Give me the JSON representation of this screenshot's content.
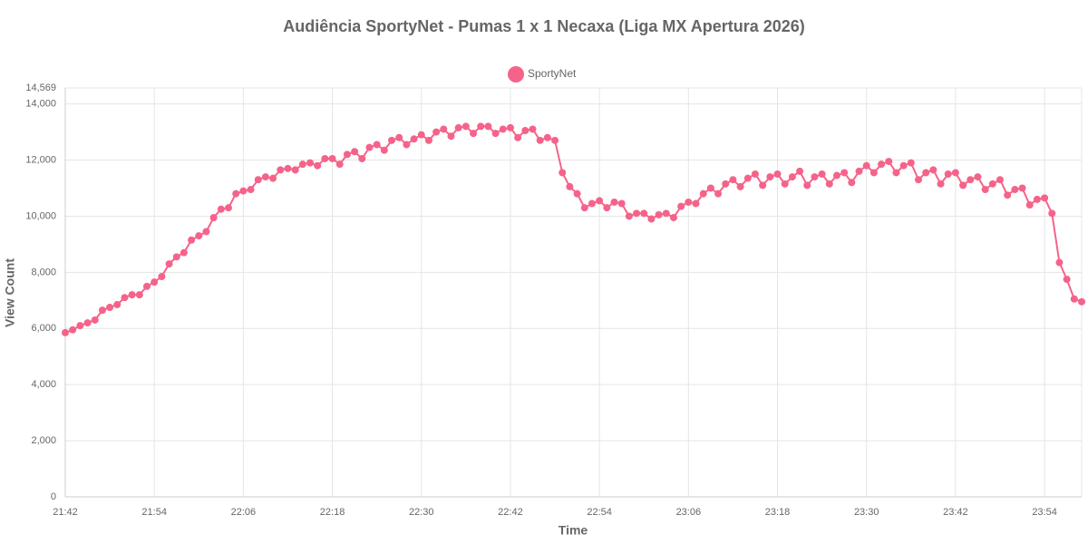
{
  "chart_data": {
    "type": "line",
    "title": "Audiência SportyNet - Pumas 1 x 1 Necaxa (Liga MX Apertura 2026)",
    "x_label": "Time",
    "y_label": "View Count",
    "categories": [
      "21:42",
      null,
      null,
      null,
      null,
      null,
      null,
      null,
      null,
      null,
      null,
      null,
      "21:54",
      null,
      null,
      null,
      null,
      null,
      null,
      null,
      null,
      null,
      null,
      null,
      "22:06",
      null,
      null,
      null,
      null,
      null,
      null,
      null,
      null,
      null,
      null,
      null,
      "22:18",
      null,
      null,
      null,
      null,
      null,
      null,
      null,
      null,
      null,
      null,
      null,
      "22:30",
      null,
      null,
      null,
      null,
      null,
      null,
      null,
      null,
      null,
      null,
      null,
      "22:42",
      null,
      null,
      null,
      null,
      null,
      null,
      null,
      null,
      null,
      null,
      null,
      "22:54",
      null,
      null,
      null,
      null,
      null,
      null,
      null,
      null,
      null,
      null,
      null,
      "23:06",
      null,
      null,
      null,
      null,
      null,
      null,
      null,
      null,
      null,
      null,
      null,
      "23:18",
      null,
      null,
      null,
      null,
      null,
      null,
      null,
      null,
      null,
      null,
      null,
      "23:30",
      null,
      null,
      null,
      null,
      null,
      null,
      null,
      null,
      null,
      null,
      null,
      "23:42",
      null,
      null,
      null,
      null,
      null,
      null,
      null,
      null,
      null,
      null,
      null,
      "23:54",
      null,
      null,
      null,
      null,
      null
    ],
    "series": [
      {
        "name": "SportyNet",
        "color": "#f5638a",
        "values": [
          5850,
          5950,
          6100,
          6200,
          6300,
          6650,
          6750,
          6850,
          7100,
          7200,
          7200,
          7500,
          7650,
          7850,
          8300,
          8550,
          8700,
          9150,
          9300,
          9450,
          9950,
          10250,
          10300,
          10800,
          10900,
          10950,
          11300,
          11400,
          11350,
          11650,
          11700,
          11650,
          11850,
          11900,
          11800,
          12050,
          12050,
          11850,
          12200,
          12300,
          12050,
          12450,
          12550,
          12350,
          12700,
          12800,
          12550,
          12750,
          12900,
          12700,
          13000,
          13100,
          12850,
          13150,
          13200,
          12950,
          13200,
          13200,
          12950,
          13100,
          13150,
          12800,
          13050,
          13100,
          12700,
          12800,
          12700,
          11550,
          11050,
          10800,
          10300,
          10450,
          10550,
          10300,
          10500,
          10450,
          10000,
          10100,
          10100,
          9900,
          10050,
          10100,
          9950,
          10350,
          10500,
          10450,
          10800,
          11000,
          10800,
          11150,
          11300,
          11050,
          11350,
          11500,
          11100,
          11400,
          11500,
          11150,
          11400,
          11600,
          11100,
          11400,
          11500,
          11150,
          11450,
          11550,
          11200,
          11600,
          11800,
          11550,
          11850,
          11950,
          11550,
          11800,
          11900,
          11300,
          11550,
          11650,
          11150,
          11500,
          11550,
          11100,
          11300,
          11400,
          10950,
          11150,
          11300,
          10750,
          10950,
          11000,
          10400,
          10600,
          10650,
          10100,
          8350,
          7750,
          7050,
          6950
        ]
      }
    ],
    "ylim": [
      0,
      14569
    ],
    "yticks": [
      0,
      {
        "value": 2000,
        "label": "2,000"
      },
      {
        "value": 4000,
        "label": "4,000"
      },
      {
        "value": 6000,
        "label": "6,000"
      },
      {
        "value": 8000,
        "label": "8,000"
      },
      {
        "value": 10000,
        "label": "10,000"
      },
      {
        "value": 12000,
        "label": "12,000"
      },
      {
        "value": 14000,
        "label": "14,000"
      },
      {
        "value": 14569,
        "label": "14,569"
      }
    ],
    "grid": true
  }
}
